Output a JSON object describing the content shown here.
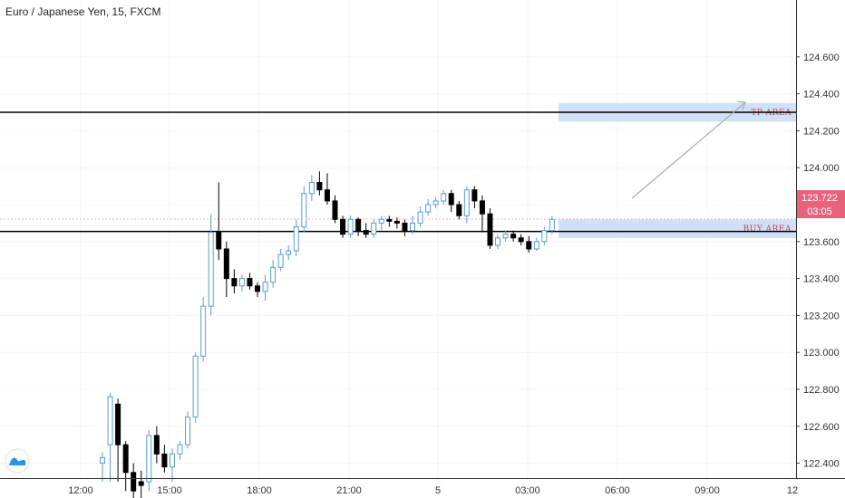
{
  "chart_data": {
    "type": "candlestick",
    "title": "Euro / Japanese Yen, 15, FXCM",
    "y_ticks": [
      122.4,
      122.6,
      122.8,
      123.0,
      123.2,
      123.4,
      123.6,
      123.8,
      124.0,
      124.2,
      124.4,
      124.6
    ],
    "y_tick_labels": [
      "122.400",
      "122.600",
      "122.800",
      "123.000",
      "123.200",
      "123.400",
      "123.600",
      "123.800",
      "124.000",
      "124.200",
      "124.400",
      "124.600"
    ],
    "ylim": [
      122.25,
      124.8
    ],
    "x_tick_labels": [
      "12:00",
      "15:00",
      "18:00",
      "21:00",
      "5",
      "03:00",
      "06:00",
      "09:00",
      "12"
    ],
    "current_price": {
      "label": "123.722",
      "countdown": "03:05",
      "value": 123.722
    },
    "horizontal_lines": [
      124.3,
      123.655
    ],
    "zones": [
      {
        "label": "TP AREA",
        "low": 124.25,
        "high": 124.35
      },
      {
        "label": "BUY AREA",
        "low": 123.62,
        "high": 123.72
      }
    ],
    "series": [
      {
        "candles": [
          [
            122.4,
            122.43,
            122.46,
            122.3
          ],
          [
            122.5,
            122.76,
            122.78,
            122.3
          ],
          [
            122.72,
            122.5,
            122.75,
            122.3
          ],
          [
            122.5,
            122.35,
            122.52,
            122.25
          ],
          [
            122.35,
            122.25,
            122.4,
            122.2
          ],
          [
            122.3,
            122.28,
            122.36,
            122.18
          ],
          [
            122.3,
            122.55,
            122.58,
            122.25
          ],
          [
            122.55,
            122.45,
            122.6,
            122.4
          ],
          [
            122.45,
            122.38,
            122.5,
            122.35
          ],
          [
            122.38,
            122.45,
            122.48,
            122.3
          ],
          [
            122.45,
            122.5,
            122.52,
            122.42
          ],
          [
            122.5,
            122.65,
            122.68,
            122.48
          ],
          [
            122.65,
            122.98,
            123.0,
            122.62
          ],
          [
            122.98,
            123.25,
            123.3,
            122.95
          ],
          [
            123.25,
            123.65,
            123.75,
            123.2
          ],
          [
            123.65,
            123.56,
            123.92,
            123.5
          ],
          [
            123.56,
            123.4,
            123.6,
            123.3
          ],
          [
            123.4,
            123.36,
            123.45,
            123.32
          ],
          [
            123.36,
            123.4,
            123.42,
            123.33
          ],
          [
            123.4,
            123.36,
            123.43,
            123.34
          ],
          [
            123.36,
            123.33,
            123.38,
            123.3
          ],
          [
            123.33,
            123.38,
            123.42,
            123.28
          ],
          [
            123.38,
            123.46,
            123.5,
            123.35
          ],
          [
            123.46,
            123.53,
            123.56,
            123.44
          ],
          [
            123.53,
            123.55,
            123.58,
            123.5
          ],
          [
            123.55,
            123.68,
            123.72,
            123.52
          ],
          [
            123.68,
            123.86,
            123.9,
            123.65
          ],
          [
            123.86,
            123.92,
            123.96,
            123.82
          ],
          [
            123.92,
            123.88,
            123.98,
            123.85
          ],
          [
            123.88,
            123.82,
            123.97,
            123.8
          ],
          [
            123.82,
            123.72,
            123.85,
            123.7
          ],
          [
            123.72,
            123.64,
            123.74,
            123.62
          ],
          [
            123.64,
            123.72,
            123.74,
            123.62
          ],
          [
            123.72,
            123.66,
            123.73,
            123.63
          ],
          [
            123.66,
            123.64,
            123.7,
            123.62
          ],
          [
            123.64,
            123.7,
            123.72,
            123.62
          ],
          [
            123.7,
            123.72,
            123.74,
            123.66
          ],
          [
            123.72,
            123.71,
            123.74,
            123.68
          ],
          [
            123.71,
            123.7,
            123.73,
            123.67
          ],
          [
            123.7,
            123.66,
            123.72,
            123.63
          ],
          [
            123.66,
            123.7,
            123.74,
            123.64
          ],
          [
            123.7,
            123.76,
            123.79,
            123.68
          ],
          [
            123.76,
            123.8,
            123.83,
            123.74
          ],
          [
            123.8,
            123.82,
            123.84,
            123.78
          ],
          [
            123.82,
            123.86,
            123.88,
            123.8
          ],
          [
            123.86,
            123.8,
            123.88,
            123.76
          ],
          [
            123.8,
            123.74,
            123.82,
            123.72
          ],
          [
            123.74,
            123.88,
            123.9,
            123.7
          ],
          [
            123.88,
            123.82,
            123.9,
            123.78
          ],
          [
            123.82,
            123.75,
            123.85,
            123.65
          ],
          [
            123.75,
            123.58,
            123.78,
            123.56
          ],
          [
            123.58,
            123.62,
            123.64,
            123.56
          ],
          [
            123.62,
            123.64,
            123.66,
            123.6
          ],
          [
            123.64,
            123.62,
            123.66,
            123.6
          ],
          [
            123.62,
            123.6,
            123.64,
            123.58
          ],
          [
            123.6,
            123.56,
            123.63,
            123.54
          ],
          [
            123.56,
            123.6,
            123.62,
            123.55
          ],
          [
            123.6,
            123.66,
            123.68,
            123.58
          ],
          [
            123.66,
            123.72,
            123.74,
            123.64
          ]
        ]
      }
    ],
    "colors": {
      "up": "#5b9bd5",
      "down": "#000000",
      "zone": "#c8daf4",
      "current_price_tag": "#e8627c",
      "zone_label": "#c0455e"
    }
  }
}
